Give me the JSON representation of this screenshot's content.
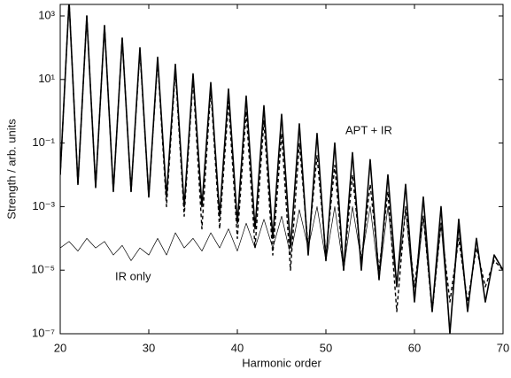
{
  "chart_data": {
    "type": "line",
    "xlabel": "Harmonic order",
    "ylabel": "Strength / arb. units",
    "x": [
      20,
      21,
      22,
      23,
      24,
      25,
      26,
      27,
      28,
      29,
      30,
      31,
      32,
      33,
      34,
      35,
      36,
      37,
      38,
      39,
      40,
      41,
      42,
      43,
      44,
      45,
      46,
      47,
      48,
      49,
      50,
      51,
      52,
      53,
      54,
      55,
      56,
      57,
      58,
      59,
      60,
      61,
      62,
      63,
      64,
      65,
      66,
      67,
      68,
      69,
      70
    ],
    "series": [
      {
        "name": "APT + IR",
        "color": "#000000",
        "linestyle": "solid",
        "linewidth": 1.6,
        "values": [
          0.01,
          3000,
          0.005,
          1000,
          0.004,
          500,
          0.003,
          200,
          0.003,
          100,
          0.002,
          50,
          0.002,
          30,
          0.001,
          15,
          0.001,
          8,
          0.0005,
          5,
          0.0003,
          3,
          0.0002,
          1.5,
          0.0001,
          0.8,
          5e-05,
          0.4,
          3e-05,
          0.2,
          2e-05,
          0.1,
          1e-05,
          0.05,
          1e-05,
          0.03,
          5e-06,
          0.01,
          3e-06,
          0.005,
          1e-06,
          0.002,
          5e-07,
          0.001,
          1e-07,
          0.0004,
          5e-07,
          0.0001,
          1e-06,
          3e-05,
          1e-05
        ]
      },
      {
        "color": "#000000",
        "linestyle": "dashed",
        "linewidth": 1.4,
        "values": [
          0.01,
          3000,
          0.005,
          1000,
          0.004,
          500,
          0.003,
          200,
          0.003,
          80,
          0.002,
          40,
          0.001,
          20,
          0.0005,
          10,
          0.0002,
          5,
          0.0002,
          2,
          0.0001,
          1,
          5e-05,
          0.5,
          3e-05,
          0.2,
          1e-05,
          0.1,
          5e-05,
          0.04,
          3e-05,
          0.02,
          1e-05,
          0.01,
          2e-05,
          0.005,
          1e-05,
          0.003,
          5e-07,
          0.001,
          3e-06,
          0.0005,
          5e-07,
          0.0003,
          1e-06,
          0.0001,
          1e-06,
          5e-05,
          3e-06,
          2e-05,
          1e-05
        ]
      },
      {
        "name": "IR only",
        "color": "#000000",
        "linestyle": "solid",
        "linewidth": 0.7,
        "values": [
          5e-05,
          8e-05,
          4e-05,
          0.0001,
          5e-05,
          8e-05,
          3e-05,
          6e-05,
          2e-05,
          5e-05,
          3e-05,
          0.0001,
          3e-05,
          0.00015,
          5e-05,
          0.0001,
          4e-05,
          0.00015,
          5e-05,
          0.0002,
          4e-05,
          0.0003,
          5e-05,
          0.0004,
          5e-05,
          0.0005,
          3e-05,
          0.0008,
          5e-05,
          0.001,
          2e-05,
          0.001,
          1e-05,
          0.001,
          2e-05,
          0.001,
          5e-06,
          0.001,
          3e-06,
          0.0008,
          1e-06,
          0.0005,
          5e-07,
          0.0003,
          1e-07,
          0.0002,
          5e-07,
          0.0001,
          1e-06,
          3e-05,
          1e-05
        ]
      }
    ],
    "xlim": [
      20,
      70
    ],
    "xticks": [
      20,
      30,
      40,
      50,
      60,
      70
    ],
    "ylim": [
      1e-07,
      2300
    ],
    "log_y": true,
    "yticks": [
      {
        "value": 1e-07,
        "label": "10⁻⁷"
      },
      {
        "value": 1e-05,
        "label": "10⁻⁵"
      },
      {
        "value": 0.001,
        "label": "10⁻³"
      },
      {
        "value": 0.1,
        "label": "10⁻¹"
      },
      {
        "value": 10,
        "label": "10¹"
      },
      {
        "value": 1000,
        "label": "10³"
      }
    ]
  }
}
